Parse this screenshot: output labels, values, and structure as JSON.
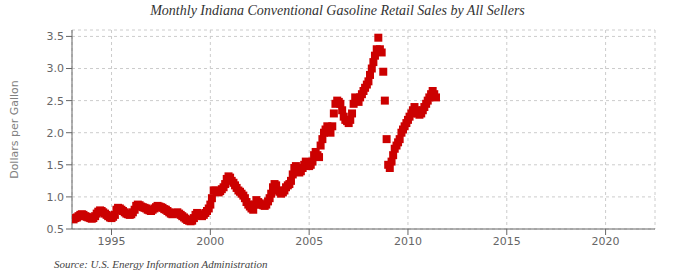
{
  "chart_data": {
    "type": "scatter",
    "title": "Monthly Indiana Conventional Gasoline Retail Sales by All Sellers",
    "y_label": "Dollars per Gallon",
    "annotations": [
      "Source: U.S. Energy Information Administration"
    ],
    "color": "#cc0000",
    "marker": "square",
    "grid": true,
    "xlim": [
      1993.0,
      2022.5
    ],
    "ylim": [
      0.5,
      3.6
    ],
    "xticks": [
      1995,
      2000,
      2005,
      2010,
      2015,
      2020
    ],
    "yticks": [
      0.5,
      {
        "value": 1.0,
        "label": "1.0"
      },
      1.5,
      {
        "value": 2.0,
        "label": "2.0"
      },
      2.5,
      {
        "value": 3.0,
        "label": "3.0"
      },
      3.5
    ],
    "x": [
      1993.08,
      1993.17,
      1993.25,
      1993.33,
      1993.42,
      1993.5,
      1993.58,
      1993.67,
      1993.75,
      1993.83,
      1993.92,
      1994.0,
      1994.08,
      1994.17,
      1994.25,
      1994.33,
      1994.42,
      1994.5,
      1994.58,
      1994.67,
      1994.75,
      1994.83,
      1994.92,
      1995.0,
      1995.08,
      1995.17,
      1995.25,
      1995.33,
      1995.42,
      1995.5,
      1995.58,
      1995.67,
      1995.75,
      1995.83,
      1995.92,
      1996.0,
      1996.08,
      1996.17,
      1996.25,
      1996.33,
      1996.42,
      1996.5,
      1996.58,
      1996.67,
      1996.75,
      1996.83,
      1996.92,
      1997.0,
      1997.08,
      1997.17,
      1997.25,
      1997.33,
      1997.42,
      1997.5,
      1997.58,
      1997.67,
      1997.75,
      1997.83,
      1997.92,
      1998.0,
      1998.08,
      1998.17,
      1998.25,
      1998.33,
      1998.42,
      1998.5,
      1998.58,
      1998.67,
      1998.75,
      1998.83,
      1998.92,
      1999.0,
      1999.08,
      1999.17,
      1999.25,
      1999.33,
      1999.42,
      1999.5,
      1999.58,
      1999.67,
      1999.75,
      1999.83,
      1999.92,
      2000.0,
      2000.08,
      2000.17,
      2000.25,
      2000.33,
      2000.42,
      2000.5,
      2000.58,
      2000.67,
      2000.75,
      2000.83,
      2000.92,
      2001.0,
      2001.08,
      2001.17,
      2001.25,
      2001.33,
      2001.42,
      2001.5,
      2001.58,
      2001.67,
      2001.75,
      2001.83,
      2001.92,
      2002.0,
      2002.08,
      2002.17,
      2002.25,
      2002.33,
      2002.42,
      2002.5,
      2002.58,
      2002.67,
      2002.75,
      2002.83,
      2002.92,
      2003.0,
      2003.08,
      2003.17,
      2003.25,
      2003.33,
      2003.42,
      2003.5,
      2003.58,
      2003.67,
      2003.75,
      2003.83,
      2003.92,
      2004.0,
      2004.08,
      2004.17,
      2004.25,
      2004.33,
      2004.42,
      2004.5,
      2004.58,
      2004.67,
      2004.75,
      2004.83,
      2004.92,
      2005.0,
      2005.08,
      2005.17,
      2005.25,
      2005.33,
      2005.42,
      2005.5,
      2005.58,
      2005.67,
      2005.75,
      2005.83,
      2005.92,
      2006.0,
      2006.08,
      2006.17,
      2006.25,
      2006.33,
      2006.42,
      2006.5,
      2006.58,
      2006.67,
      2006.75,
      2006.83,
      2006.92,
      2007.0,
      2007.08,
      2007.17,
      2007.25,
      2007.33,
      2007.42,
      2007.5,
      2007.58,
      2007.67,
      2007.75,
      2007.83,
      2007.92,
      2008.0,
      2008.08,
      2008.17,
      2008.25,
      2008.33,
      2008.42,
      2008.5,
      2008.58,
      2008.67,
      2008.75,
      2008.83,
      2008.92,
      2009.0,
      2009.08,
      2009.17,
      2009.25,
      2009.33,
      2009.42,
      2009.5,
      2009.58,
      2009.67,
      2009.75,
      2009.83,
      2009.92,
      2010.0,
      2010.08,
      2010.17,
      2010.25,
      2010.33,
      2010.42,
      2010.5,
      2010.58,
      2010.67,
      2010.75,
      2010.83,
      2010.92,
      2011.0,
      2011.08,
      2011.17,
      2011.25,
      2011.33,
      2011.42
    ],
    "values": [
      0.65,
      0.67,
      0.68,
      0.7,
      0.72,
      0.73,
      0.72,
      0.7,
      0.69,
      0.68,
      0.67,
      0.66,
      0.67,
      0.7,
      0.74,
      0.77,
      0.79,
      0.78,
      0.76,
      0.74,
      0.72,
      0.7,
      0.68,
      0.67,
      0.69,
      0.72,
      0.8,
      0.83,
      0.82,
      0.8,
      0.78,
      0.76,
      0.74,
      0.73,
      0.72,
      0.73,
      0.76,
      0.8,
      0.86,
      0.88,
      0.87,
      0.85,
      0.84,
      0.83,
      0.82,
      0.8,
      0.79,
      0.78,
      0.8,
      0.82,
      0.84,
      0.86,
      0.85,
      0.84,
      0.83,
      0.81,
      0.8,
      0.78,
      0.76,
      0.74,
      0.73,
      0.74,
      0.75,
      0.76,
      0.74,
      0.72,
      0.7,
      0.68,
      0.66,
      0.64,
      0.63,
      0.62,
      0.63,
      0.67,
      0.72,
      0.75,
      0.73,
      0.71,
      0.7,
      0.72,
      0.75,
      0.78,
      0.82,
      0.88,
      0.98,
      1.1,
      1.1,
      1.08,
      1.07,
      1.09,
      1.12,
      1.15,
      1.2,
      1.28,
      1.32,
      1.3,
      1.25,
      1.22,
      1.18,
      1.14,
      1.1,
      1.08,
      1.05,
      1.02,
      0.98,
      0.92,
      0.88,
      0.85,
      0.82,
      0.8,
      0.88,
      0.95,
      0.92,
      0.9,
      0.88,
      0.87,
      0.86,
      0.88,
      0.93,
      0.98,
      1.05,
      1.15,
      1.2,
      1.18,
      1.1,
      1.08,
      1.05,
      1.07,
      1.1,
      1.15,
      1.18,
      1.2,
      1.25,
      1.35,
      1.45,
      1.48,
      1.42,
      1.38,
      1.4,
      1.45,
      1.5,
      1.55,
      1.52,
      1.48,
      1.5,
      1.55,
      1.65,
      1.7,
      1.65,
      1.62,
      1.8,
      1.9,
      2.0,
      2.05,
      2.1,
      2.05,
      2.0,
      2.1,
      2.3,
      2.45,
      2.5,
      2.48,
      2.45,
      2.35,
      2.25,
      2.2,
      2.18,
      2.15,
      2.2,
      2.3,
      2.45,
      2.55,
      2.52,
      2.48,
      2.55,
      2.6,
      2.65,
      2.7,
      2.75,
      2.8,
      2.9,
      3.0,
      3.1,
      3.2,
      3.3,
      3.48,
      3.3,
      3.25,
      2.95,
      2.5,
      1.9,
      1.5,
      1.45,
      1.55,
      1.65,
      1.75,
      1.8,
      1.85,
      1.9,
      2.0,
      2.05,
      2.1,
      2.15,
      2.2,
      2.25,
      2.3,
      2.35,
      2.4,
      2.35,
      2.3,
      2.28,
      2.3,
      2.35,
      2.4,
      2.45,
      2.5,
      2.55,
      2.6,
      2.65,
      2.6,
      2.55
    ]
  }
}
